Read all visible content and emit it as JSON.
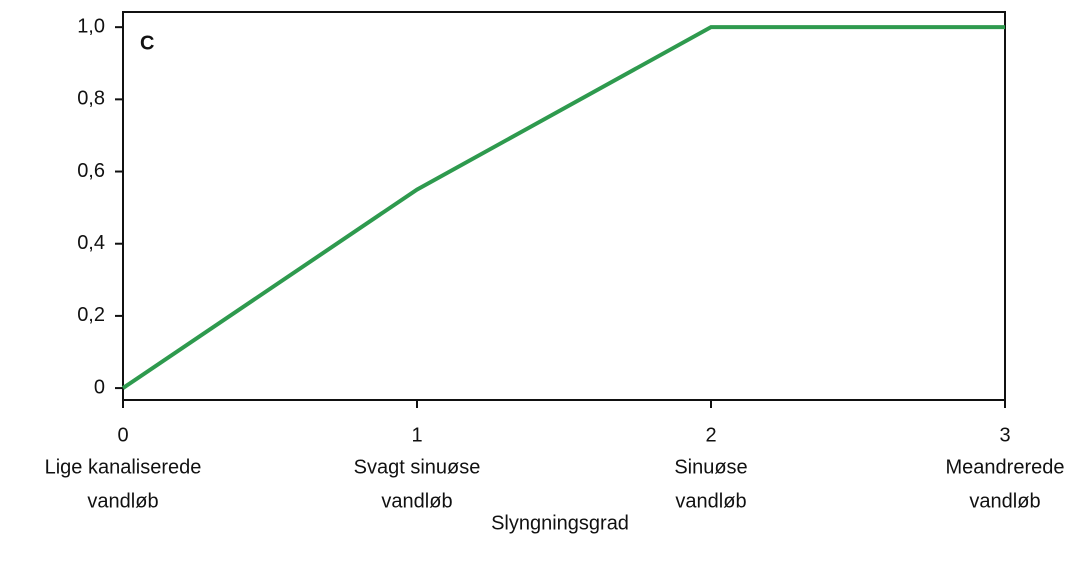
{
  "chart_data": {
    "type": "line",
    "panel_label": "C",
    "x_label": "Slyngningsgrad",
    "x": [
      0,
      1,
      2,
      3
    ],
    "series": [
      {
        "color": "#2e9a4e",
        "values": [
          0,
          0.55,
          1,
          1
        ]
      }
    ],
    "xlim": [
      0,
      3
    ],
    "xticks": [
      0,
      1,
      2,
      3
    ],
    "xtick_descriptions": [
      [
        "Lige kanaliserede",
        "vandløb"
      ],
      [
        "Svagt sinuøse",
        "vandløb"
      ],
      [
        "Sinuøse",
        "vandløb"
      ],
      [
        "Meandrerede",
        "vandløb"
      ]
    ],
    "ylim": [
      -0.033,
      1.042
    ],
    "yticks": [
      0,
      {
        "value": 0.2,
        "label": "0,2"
      },
      {
        "value": 0.4,
        "label": "0,4"
      },
      {
        "value": 0.6,
        "label": "0,6"
      },
      {
        "value": 0.8,
        "label": "0,8"
      },
      {
        "value": 1,
        "label": "1,0"
      }
    ]
  }
}
